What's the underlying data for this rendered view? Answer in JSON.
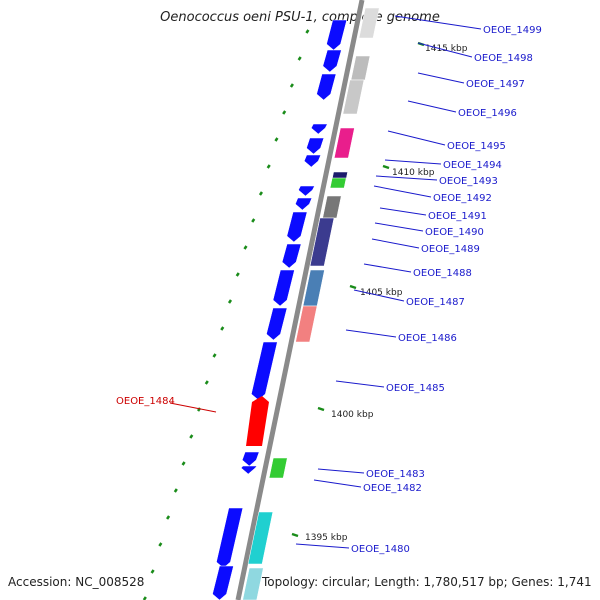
{
  "header": {
    "title": "Oenococcus oeni PSU-1, complete genome"
  },
  "footer": {
    "accession": "Accession: NC_008528",
    "summary": "Topology: circular; Length: 1,780,517 bp; Genes: 1,741"
  },
  "colors": {
    "backbone": "#8a8a8a",
    "gene_blue": "#0b0bff",
    "label_blue": "#1a1acc",
    "label_red": "#cc0000",
    "highlight_red": "#ff0000",
    "tick_green": "#1a8c1a"
  },
  "scale_labels": [
    "1415 kbp",
    "1410 kbp",
    "1405 kbp",
    "1400 kbp",
    "1395 kbp"
  ],
  "gene_labels": [
    "OEOE_1499",
    "OEOE_1498",
    "OEOE_1497",
    "OEOE_1496",
    "OEOE_1495",
    "OEOE_1494",
    "OEOE_1493",
    "OEOE_1492",
    "OEOE_1491",
    "OEOE_1490",
    "OEOE_1489",
    "OEOE_1488",
    "OEOE_1487",
    "OEOE_1486",
    "OEOE_1485",
    "OEOE_1483",
    "OEOE_1482",
    "OEOE_1480"
  ],
  "highlighted_gene": "OEOE_1484"
}
